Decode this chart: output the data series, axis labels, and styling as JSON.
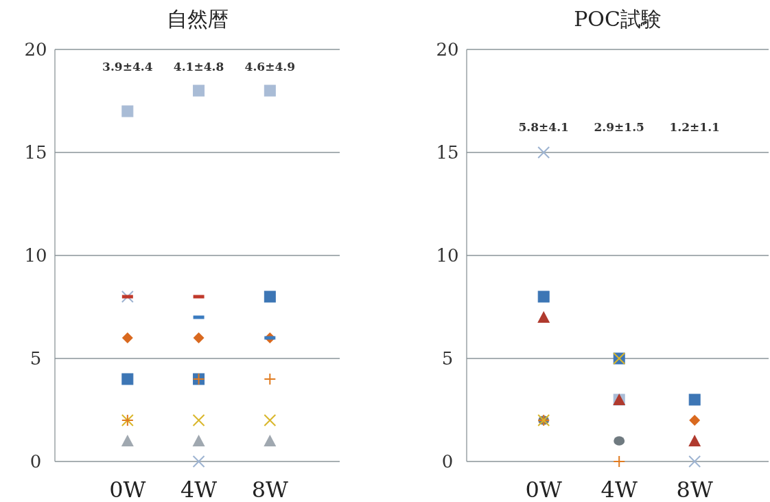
{
  "chart_data": [
    {
      "type": "scatter",
      "title": "自然暦",
      "categories": [
        "0W",
        "4W",
        "8W"
      ],
      "ylim": [
        0,
        20
      ],
      "yticks": [
        0,
        5,
        10,
        15,
        20
      ],
      "grid": "y",
      "series": [
        {
          "color": "#a9bcd6",
          "marker": "square",
          "values": [
            17,
            18,
            18
          ]
        },
        {
          "color": "#9db3d1",
          "marker": "cross",
          "values": [
            8,
            0,
            null
          ]
        },
        {
          "color": "#c0392b",
          "values": [
            8,
            8,
            null
          ]
        },
        {
          "color": "#d9691f",
          "marker": "diamond",
          "values": [
            6,
            6,
            6
          ]
        },
        {
          "color": "#3a7bbf",
          "values": [
            null,
            7,
            6
          ]
        },
        {
          "color": "#3d76b5",
          "marker": "square",
          "values": [
            4,
            4,
            8
          ]
        },
        {
          "color": "#d9b62a",
          "marker": "cross",
          "values": [
            2,
            2,
            2
          ]
        },
        {
          "color": "#e07b20",
          "marker": "plus",
          "values": [
            2,
            4,
            4
          ]
        },
        {
          "color": "#a0a8b0",
          "marker": "triangle",
          "values": [
            1,
            1,
            1
          ]
        }
      ],
      "annotations": [
        "3.9±4.4",
        "4.1±4.8",
        "4.6±4.9"
      ]
    },
    {
      "type": "scatter",
      "title": "POC試験",
      "categories": [
        "0W",
        "4W",
        "8W"
      ],
      "ylim": [
        0,
        20
      ],
      "yticks": [
        0,
        5,
        10,
        15,
        20
      ],
      "grid": "y",
      "series": [
        {
          "color": "#a9bcd6",
          "marker": "square",
          "values": [
            null,
            3,
            null
          ]
        },
        {
          "color": "#9db3d1",
          "marker": "cross",
          "values": [
            15,
            null,
            0
          ]
        },
        {
          "color": "#3d76b5",
          "marker": "square",
          "values": [
            8,
            5,
            3
          ]
        },
        {
          "color": "#b03a2e",
          "marker": "triangle",
          "values": [
            7,
            3,
            1
          ]
        },
        {
          "color": "#d9691f",
          "marker": "diamond",
          "values": [
            null,
            null,
            2
          ]
        },
        {
          "color": "#6f7a80",
          "marker": "circle",
          "values": [
            2,
            1,
            null
          ]
        },
        {
          "color": "#e07b20",
          "marker": "plus",
          "values": [
            2,
            0,
            null
          ]
        },
        {
          "color": "#d9b62a",
          "marker": "cross",
          "values": [
            2,
            5,
            null
          ]
        }
      ],
      "annotations": [
        "5.8±4.1",
        "2.9±1.5",
        "1.2±1.1"
      ]
    }
  ]
}
